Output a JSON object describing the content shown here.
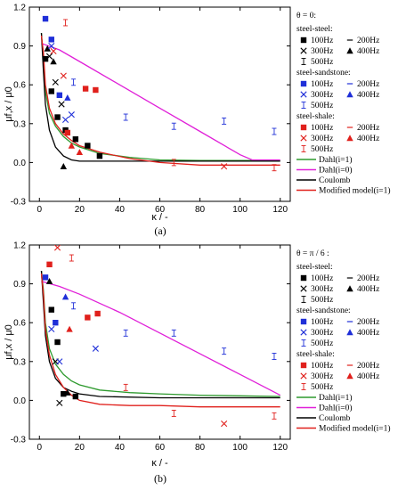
{
  "figure": {
    "panels": [
      {
        "caption": "(a)",
        "theta_label": "θ = 0:"
      },
      {
        "caption": "(b)",
        "theta_label": "θ = π / 6 :"
      }
    ]
  },
  "legend": {
    "groups": [
      {
        "name": "steel-steel:",
        "color": "#000000"
      },
      {
        "name": "steel-sandstone:",
        "color": "#1f2fd8"
      },
      {
        "name": "steel-shale:",
        "color": "#e0201c"
      }
    ],
    "freq_labels": [
      "100Hz",
      "200Hz",
      "300Hz",
      "400Hz",
      "500Hz"
    ],
    "lines": [
      {
        "name": "Dahl(i=1)",
        "color": "#2e9a2e"
      },
      {
        "name": "Dahl(i=0)",
        "color": "#e020d8"
      },
      {
        "name": "Coulomb",
        "color": "#000000"
      },
      {
        "name": "Modified model(i=1)",
        "color": "#e0201c"
      }
    ]
  },
  "chart_data": [
    {
      "type": "scatter",
      "caption": "(a)",
      "xlabel": "κ / -",
      "ylabel": "μf,x / μ0",
      "xlim": [
        -5,
        125
      ],
      "ylim": [
        -0.3,
        1.2
      ],
      "xticks": [
        0,
        20,
        40,
        60,
        80,
        100,
        120
      ],
      "yticks": [
        -0.3,
        0.0,
        0.3,
        0.6,
        0.9,
        1.2
      ],
      "grid": false,
      "legend_position": "right",
      "lines": [
        {
          "name": "Dahl(i=1)",
          "x": [
            1,
            2,
            3,
            5,
            8,
            12,
            16,
            20,
            30,
            45,
            60,
            80,
            100,
            120
          ],
          "y": [
            1.0,
            0.8,
            0.55,
            0.38,
            0.28,
            0.2,
            0.15,
            0.12,
            0.07,
            0.04,
            0.02,
            0.015,
            0.015,
            0.015
          ]
        },
        {
          "name": "Dahl(i=0)",
          "x": [
            1,
            10,
            20,
            40,
            60,
            80,
            100,
            106,
            120
          ],
          "y": [
            0.92,
            0.87,
            0.78,
            0.6,
            0.42,
            0.24,
            0.06,
            0.02,
            0.02
          ]
        },
        {
          "name": "Coulomb",
          "x": [
            1,
            2,
            3,
            5,
            8,
            12,
            16,
            20,
            30,
            60,
            120
          ],
          "y": [
            1.0,
            0.7,
            0.45,
            0.25,
            0.12,
            0.05,
            0.02,
            0.01,
            0.01,
            0.01,
            0.01
          ]
        },
        {
          "name": "Modified model(i=1)",
          "x": [
            1,
            2,
            3,
            5,
            8,
            12,
            16,
            20,
            30,
            45,
            60,
            80,
            100,
            120
          ],
          "y": [
            0.98,
            0.85,
            0.6,
            0.42,
            0.3,
            0.22,
            0.17,
            0.13,
            0.08,
            0.03,
            0.0,
            -0.02,
            -0.02,
            -0.02
          ]
        }
      ],
      "points": [
        {
          "group": "steel-steel",
          "freq": "100Hz",
          "x": 3,
          "y": 0.8
        },
        {
          "group": "steel-steel",
          "freq": "100Hz",
          "x": 6,
          "y": 0.55
        },
        {
          "group": "steel-steel",
          "freq": "100Hz",
          "x": 9,
          "y": 0.35
        },
        {
          "group": "steel-steel",
          "freq": "100Hz",
          "x": 13,
          "y": 0.25
        },
        {
          "group": "steel-steel",
          "freq": "100Hz",
          "x": 18,
          "y": 0.18
        },
        {
          "group": "steel-steel",
          "freq": "100Hz",
          "x": 24,
          "y": 0.13
        },
        {
          "group": "steel-steel",
          "freq": "100Hz",
          "x": 30,
          "y": 0.05
        },
        {
          "group": "steel-steel",
          "freq": "300Hz",
          "x": 5,
          "y": 0.82
        },
        {
          "group": "steel-steel",
          "freq": "300Hz",
          "x": 8,
          "y": 0.62
        },
        {
          "group": "steel-steel",
          "freq": "300Hz",
          "x": 11,
          "y": 0.45
        },
        {
          "group": "steel-steel",
          "freq": "400Hz",
          "x": 4,
          "y": 0.88
        },
        {
          "group": "steel-steel",
          "freq": "400Hz",
          "x": 7,
          "y": 0.78
        },
        {
          "group": "steel-steel",
          "freq": "400Hz",
          "x": 12,
          "y": -0.03
        },
        {
          "group": "steel-sandstone",
          "freq": "100Hz",
          "x": 3,
          "y": 1.11
        },
        {
          "group": "steel-sandstone",
          "freq": "100Hz",
          "x": 6,
          "y": 0.95
        },
        {
          "group": "steel-sandstone",
          "freq": "100Hz",
          "x": 10,
          "y": 0.52
        },
        {
          "group": "steel-sandstone",
          "freq": "300Hz",
          "x": 6,
          "y": 0.9
        },
        {
          "group": "steel-sandstone",
          "freq": "300Hz",
          "x": 13,
          "y": 0.33
        },
        {
          "group": "steel-sandstone",
          "freq": "300Hz",
          "x": 16,
          "y": 0.37
        },
        {
          "group": "steel-sandstone",
          "freq": "400Hz",
          "x": 14,
          "y": 0.5
        },
        {
          "group": "steel-sandstone",
          "freq": "500Hz",
          "x": 17,
          "y": 0.62
        },
        {
          "group": "steel-sandstone",
          "freq": "500Hz",
          "x": 43,
          "y": 0.35
        },
        {
          "group": "steel-sandstone",
          "freq": "500Hz",
          "x": 67,
          "y": 0.28
        },
        {
          "group": "steel-sandstone",
          "freq": "500Hz",
          "x": 92,
          "y": 0.32
        },
        {
          "group": "steel-sandstone",
          "freq": "500Hz",
          "x": 117,
          "y": 0.24
        },
        {
          "group": "steel-shale",
          "freq": "100Hz",
          "x": 23,
          "y": 0.57
        },
        {
          "group": "steel-shale",
          "freq": "100Hz",
          "x": 28,
          "y": 0.56
        },
        {
          "group": "steel-shale",
          "freq": "100Hz",
          "x": 14,
          "y": 0.23
        },
        {
          "group": "steel-shale",
          "freq": "300Hz",
          "x": 7,
          "y": 0.86
        },
        {
          "group": "steel-shale",
          "freq": "300Hz",
          "x": 12,
          "y": 0.67
        },
        {
          "group": "steel-shale",
          "freq": "300Hz",
          "x": 92,
          "y": -0.03
        },
        {
          "group": "steel-shale",
          "freq": "400Hz",
          "x": 16,
          "y": 0.13
        },
        {
          "group": "steel-shale",
          "freq": "400Hz",
          "x": 20,
          "y": 0.08
        },
        {
          "group": "steel-shale",
          "freq": "500Hz",
          "x": 13,
          "y": 1.08
        },
        {
          "group": "steel-shale",
          "freq": "500Hz",
          "x": 117,
          "y": -0.04
        },
        {
          "group": "steel-shale",
          "freq": "500Hz",
          "x": 67,
          "y": 0.0
        }
      ]
    },
    {
      "type": "scatter",
      "caption": "(b)",
      "xlabel": "κ / -",
      "ylabel": "μf,x / μ0",
      "xlim": [
        -5,
        125
      ],
      "ylim": [
        -0.3,
        1.2
      ],
      "xticks": [
        0,
        20,
        40,
        60,
        80,
        100,
        120
      ],
      "yticks": [
        -0.3,
        0.0,
        0.3,
        0.6,
        0.9,
        1.2
      ],
      "grid": false,
      "legend_position": "right",
      "lines": [
        {
          "name": "Dahl(i=1)",
          "x": [
            1,
            2,
            3,
            5,
            8,
            12,
            16,
            20,
            30,
            45,
            60,
            80,
            100,
            120
          ],
          "y": [
            1.0,
            0.85,
            0.6,
            0.4,
            0.28,
            0.2,
            0.15,
            0.12,
            0.08,
            0.06,
            0.05,
            0.04,
            0.035,
            0.03
          ]
        },
        {
          "name": "Dahl(i=0)",
          "x": [
            1,
            10,
            20,
            40,
            60,
            80,
            100,
            120
          ],
          "y": [
            0.92,
            0.88,
            0.82,
            0.68,
            0.52,
            0.36,
            0.2,
            0.04
          ]
        },
        {
          "name": "Coulomb",
          "x": [
            1,
            2,
            3,
            5,
            8,
            12,
            16,
            20,
            30,
            60,
            120
          ],
          "y": [
            1.0,
            0.75,
            0.5,
            0.3,
            0.17,
            0.1,
            0.07,
            0.05,
            0.03,
            0.02,
            0.02
          ]
        },
        {
          "name": "Modified model(i=1)",
          "x": [
            1,
            2,
            3,
            5,
            8,
            12,
            16,
            20,
            30,
            45,
            60,
            80,
            100,
            120
          ],
          "y": [
            0.98,
            0.82,
            0.55,
            0.35,
            0.2,
            0.1,
            0.04,
            0.0,
            -0.03,
            -0.04,
            -0.04,
            -0.05,
            -0.05,
            -0.05
          ]
        }
      ],
      "points": [
        {
          "group": "steel-steel",
          "freq": "100Hz",
          "x": 6,
          "y": 0.7
        },
        {
          "group": "steel-steel",
          "freq": "100Hz",
          "x": 9,
          "y": 0.45
        },
        {
          "group": "steel-steel",
          "freq": "100Hz",
          "x": 12,
          "y": 0.05
        },
        {
          "group": "steel-steel",
          "freq": "100Hz",
          "x": 18,
          "y": 0.03
        },
        {
          "group": "steel-steel",
          "freq": "300Hz",
          "x": 8,
          "y": 0.3
        },
        {
          "group": "steel-steel",
          "freq": "300Hz",
          "x": 10,
          "y": -0.02
        },
        {
          "group": "steel-steel",
          "freq": "400Hz",
          "x": 5,
          "y": 0.92
        },
        {
          "group": "steel-steel",
          "freq": "400Hz",
          "x": 14,
          "y": 0.06
        },
        {
          "group": "steel-sandstone",
          "freq": "100Hz",
          "x": 3,
          "y": 0.95
        },
        {
          "group": "steel-sandstone",
          "freq": "100Hz",
          "x": 8,
          "y": 0.6
        },
        {
          "group": "steel-sandstone",
          "freq": "300Hz",
          "x": 6,
          "y": 0.55
        },
        {
          "group": "steel-sandstone",
          "freq": "300Hz",
          "x": 10,
          "y": 0.3
        },
        {
          "group": "steel-sandstone",
          "freq": "300Hz",
          "x": 28,
          "y": 0.4
        },
        {
          "group": "steel-sandstone",
          "freq": "400Hz",
          "x": 13,
          "y": 0.8
        },
        {
          "group": "steel-sandstone",
          "freq": "500Hz",
          "x": 17,
          "y": 0.73
        },
        {
          "group": "steel-sandstone",
          "freq": "500Hz",
          "x": 43,
          "y": 0.52
        },
        {
          "group": "steel-sandstone",
          "freq": "500Hz",
          "x": 67,
          "y": 0.52
        },
        {
          "group": "steel-sandstone",
          "freq": "500Hz",
          "x": 92,
          "y": 0.38
        },
        {
          "group": "steel-sandstone",
          "freq": "500Hz",
          "x": 117,
          "y": 0.34
        },
        {
          "group": "steel-shale",
          "freq": "100Hz",
          "x": 5,
          "y": 1.05
        },
        {
          "group": "steel-shale",
          "freq": "100Hz",
          "x": 24,
          "y": 0.64
        },
        {
          "group": "steel-shale",
          "freq": "100Hz",
          "x": 29,
          "y": 0.67
        },
        {
          "group": "steel-shale",
          "freq": "300Hz",
          "x": 9,
          "y": 1.18
        },
        {
          "group": "steel-shale",
          "freq": "300Hz",
          "x": 92,
          "y": -0.18
        },
        {
          "group": "steel-shale",
          "freq": "400Hz",
          "x": 15,
          "y": 0.55
        },
        {
          "group": "steel-shale",
          "freq": "500Hz",
          "x": 16,
          "y": 1.1
        },
        {
          "group": "steel-shale",
          "freq": "500Hz",
          "x": 43,
          "y": 0.1
        },
        {
          "group": "steel-shale",
          "freq": "500Hz",
          "x": 67,
          "y": -0.1
        },
        {
          "group": "steel-shale",
          "freq": "500Hz",
          "x": 117,
          "y": -0.12
        }
      ]
    }
  ]
}
